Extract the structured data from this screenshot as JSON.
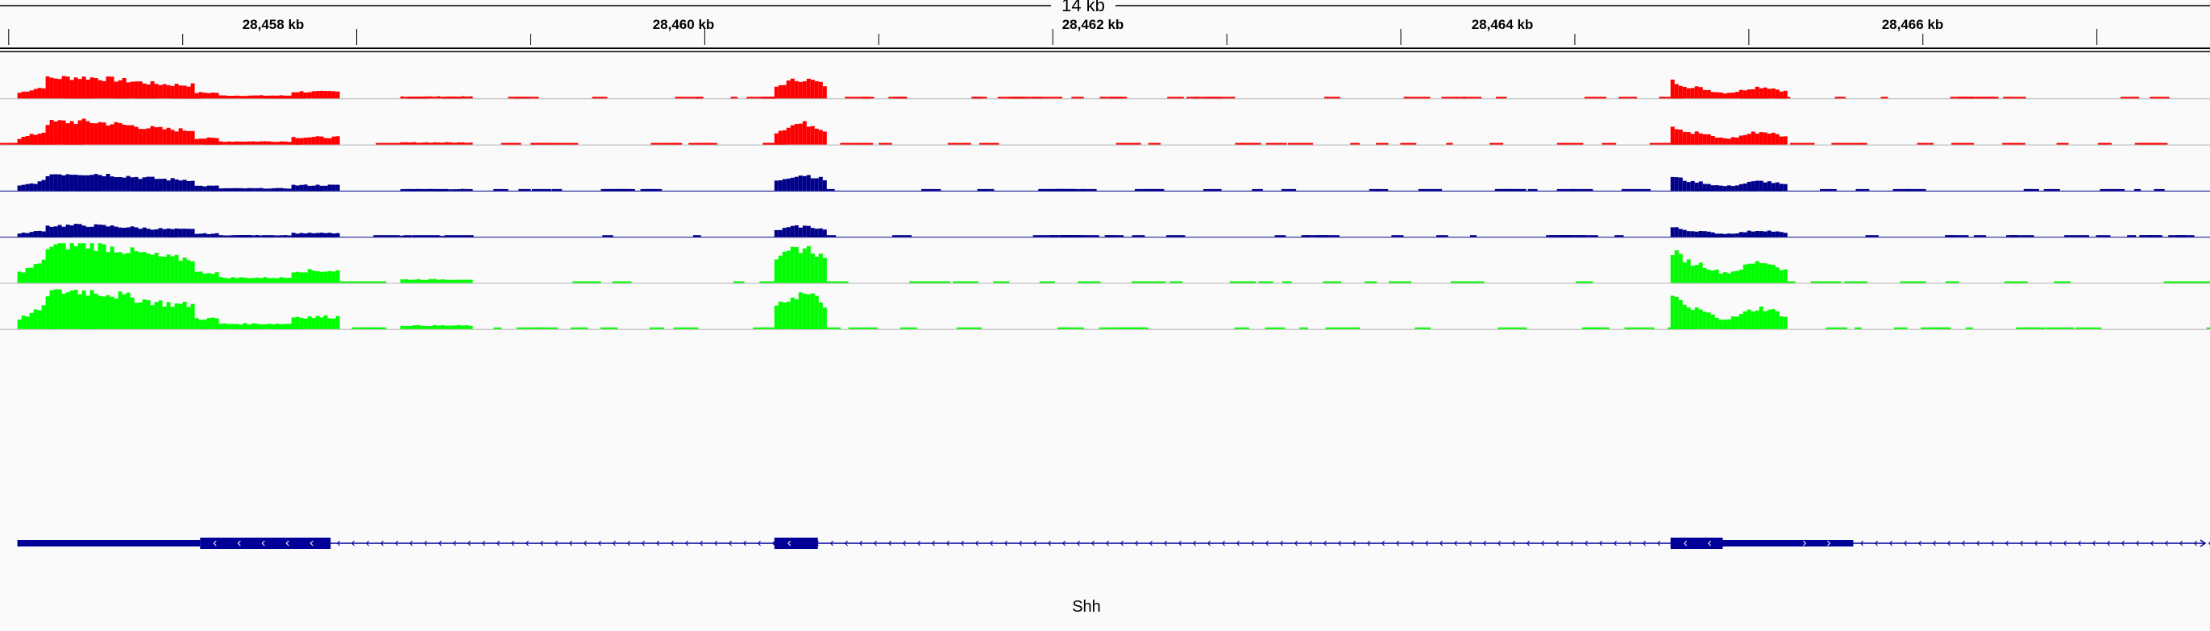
{
  "ruler": {
    "span_label": "14 kb",
    "unit": "kb",
    "tick_labels": [
      "28,458 kb",
      "28,460 kb",
      "28,462 kb",
      "28,464 kb",
      "28,466 kb"
    ],
    "region_kb": [
      28456.95,
      28469.65
    ]
  },
  "colors": {
    "red_track": "#ff0000",
    "blue_track": "#00008b",
    "green_track": "#00ff00",
    "gene": "#000099",
    "ruler_line": "#000000",
    "track_baseline": "#b4b4b4"
  },
  "tracks": [
    {
      "color_key": "red_track",
      "peak_scale": 0.55
    },
    {
      "color_key": "red_track",
      "peak_scale": 0.6
    },
    {
      "color_key": "blue_track",
      "peak_scale": 0.45
    },
    {
      "color_key": "blue_track",
      "peak_scale": 0.3
    },
    {
      "color_key": "green_track",
      "peak_scale": 1.0
    },
    {
      "color_key": "green_track",
      "peak_scale": 1.0
    }
  ],
  "coverage_regions_kb": [
    {
      "start": 28457.05,
      "end": 28458.9,
      "profile": "left_cluster"
    },
    {
      "start": 28459.25,
      "end": 28459.65,
      "profile": "small_peak"
    },
    {
      "start": 28461.4,
      "end": 28461.7,
      "profile": "exon_peak"
    },
    {
      "start": 28466.55,
      "end": 28467.2,
      "profile": "right_cluster"
    }
  ],
  "gene": {
    "name": "Shh",
    "strand": "-",
    "exons_kb": [
      {
        "start": 28457.05,
        "end": 28458.1,
        "kind": "utr"
      },
      {
        "start": 28458.1,
        "end": 28458.85,
        "kind": "cds"
      },
      {
        "start": 28461.4,
        "end": 28461.65,
        "kind": "cds"
      },
      {
        "start": 28466.55,
        "end": 28466.85,
        "kind": "cds"
      },
      {
        "start": 28466.85,
        "end": 28467.6,
        "kind": "utr"
      }
    ],
    "line_end_kb": 28469.65
  },
  "icons": {
    "strand_arrow": "chevron-left",
    "right_arrow": "chevron-right"
  }
}
